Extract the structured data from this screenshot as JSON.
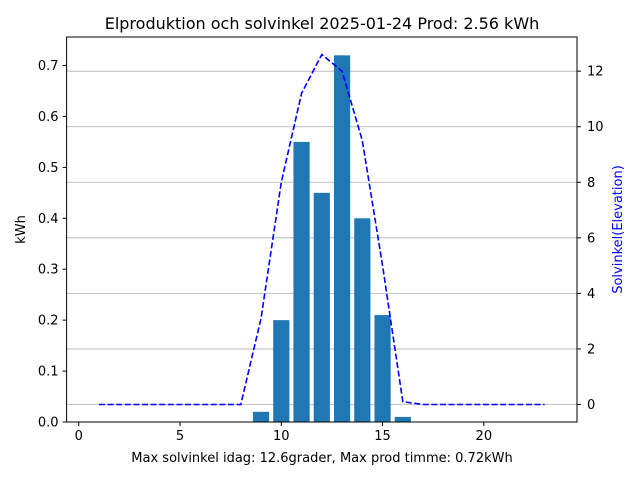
{
  "chart_data": {
    "type": "bar",
    "title": "Elproduktion och solvinkel 2025-01-24 Prod: 2.56 kWh",
    "xlabel": "Max solvinkel idag: 12.6grader, Max prod timme: 0.72kWh",
    "ylabel": "kWh",
    "y2label": "Solvinkel(Elevation)",
    "xlim": [
      -0.6,
      24.6
    ],
    "ylim": [
      0,
      0.756
    ],
    "y2lim": [
      -0.63,
      13.23
    ],
    "xticks": [
      0,
      5,
      10,
      15,
      20
    ],
    "yticks": [
      0.0,
      0.1,
      0.2,
      0.3,
      0.4,
      0.5,
      0.6,
      0.7
    ],
    "y2ticks": [
      0,
      2,
      4,
      6,
      8,
      10,
      12
    ],
    "grid": "horizontal, right axis",
    "bar_color": "#1f77b4",
    "line_color": "#0000ff",
    "bars": {
      "x": [
        9,
        10,
        11,
        12,
        13,
        14,
        15,
        16
      ],
      "values": [
        0.02,
        0.2,
        0.55,
        0.45,
        0.72,
        0.4,
        0.21,
        0.01
      ]
    },
    "line": {
      "x": [
        1,
        2,
        3,
        4,
        5,
        6,
        7,
        8,
        9,
        10,
        11,
        12,
        13,
        14,
        15,
        16,
        17,
        18,
        19,
        20,
        21,
        22,
        23
      ],
      "values": [
        0,
        0,
        0,
        0,
        0,
        0,
        0,
        0,
        3.1,
        8.0,
        11.2,
        12.6,
        12.0,
        9.5,
        5.0,
        0.1,
        0,
        0,
        0,
        0,
        0,
        0,
        0
      ]
    }
  }
}
